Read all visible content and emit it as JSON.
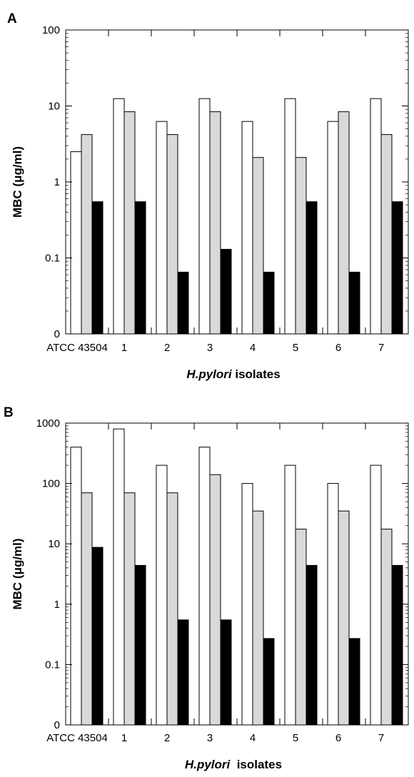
{
  "chart_data": [
    {
      "type": "bar",
      "panel_label": "A",
      "categories": [
        "ATCC 43504",
        "1",
        "2",
        "3",
        "4",
        "5",
        "6",
        "7"
      ],
      "series": [
        {
          "values": [
            2.5,
            12.5,
            6.25,
            12.5,
            6.25,
            12.5,
            6.25,
            12.5
          ]
        },
        {
          "values": [
            4.2,
            8.4,
            4.2,
            8.4,
            2.1,
            2.1,
            8.4,
            4.2
          ]
        },
        {
          "values": [
            0.55,
            0.55,
            0.065,
            0.13,
            0.065,
            0.55,
            0.065,
            0.55
          ]
        }
      ],
      "series_colors": [
        "#ffffff",
        "#d9d9d9",
        "#000000"
      ],
      "ytick_values": [
        0.01,
        0.1,
        1,
        10,
        100
      ],
      "ytick_labels": [
        "0",
        "0.1",
        "1",
        "10",
        "100"
      ],
      "ylim": [
        0.01,
        100
      ],
      "yscale": "log",
      "xlabel_italic": "H.pylori",
      "xlabel_rest": " isolates",
      "ylabel": "MBC (μg/ml)",
      "grid": false
    },
    {
      "type": "bar",
      "panel_label": "B",
      "categories": [
        "ATCC 43504",
        "1",
        "2",
        "3",
        "4",
        "5",
        "6",
        "7"
      ],
      "series": [
        {
          "values": [
            400,
            800,
            200,
            400,
            100,
            200,
            100,
            200
          ]
        },
        {
          "values": [
            70,
            70,
            70,
            140,
            35,
            17.5,
            35,
            17.5
          ]
        },
        {
          "values": [
            8.75,
            4.4,
            0.55,
            0.55,
            0.27,
            4.4,
            0.27,
            4.4
          ]
        }
      ],
      "series_colors": [
        "#ffffff",
        "#d9d9d9",
        "#000000"
      ],
      "ytick_values": [
        0.01,
        0.1,
        1,
        10,
        100,
        1000
      ],
      "ytick_labels": [
        "0",
        "0.1",
        "1",
        "10",
        "100",
        "1000"
      ],
      "ylim": [
        0.01,
        1000
      ],
      "yscale": "log",
      "xlabel_italic": "H.pylori",
      "xlabel_rest": "  isolates",
      "ylabel": "MBC (μg/ml)",
      "grid": false
    }
  ]
}
